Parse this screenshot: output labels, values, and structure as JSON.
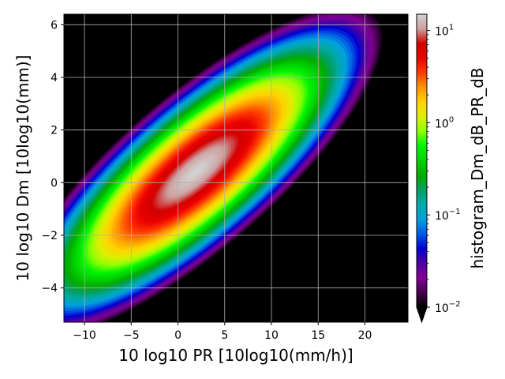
{
  "chart_data": {
    "type": "heatmap",
    "xlabel": "10 log10 PR [10log10(mm/h)]",
    "ylabel": "10 log10 Dm [10log10(mm)]",
    "colorbar_label": "histogram_Dm_dB_PR_dB",
    "xlim": [
      -12.2,
      24.6
    ],
    "ylim": [
      -5.3,
      6.4
    ],
    "x_ticks": [
      -10,
      -5,
      0,
      5,
      10,
      15,
      20
    ],
    "x_tick_labels": [
      "−10",
      "−5",
      "0",
      "5",
      "10",
      "15",
      "20"
    ],
    "y_ticks": [
      -4,
      -2,
      0,
      2,
      4,
      6
    ],
    "y_tick_labels": [
      "−4",
      "−2",
      "0",
      "2",
      "4",
      "6"
    ],
    "colorbar": {
      "scale": "log",
      "range": [
        0.01,
        15
      ],
      "extend": "min",
      "ticks": [
        {
          "value": 10,
          "base": "10",
          "exp": "1"
        },
        {
          "value": 1,
          "base": "10",
          "exp": "0"
        },
        {
          "value": 0.1,
          "base": "10",
          "exp": "−1"
        },
        {
          "value": 0.01,
          "base": "10",
          "exp": "−2"
        }
      ]
    },
    "distribution": {
      "shape": "tilted elliptical 2D histogram",
      "peak_x": 1.9,
      "peak_y": 0.4,
      "peak_value": 15,
      "slope_dDm_dPR": 0.306,
      "edge_value": 0.01,
      "major_extent_PR": 19.5,
      "minor_extent_Dm": 1.55
    },
    "background": "#000000",
    "grid": true
  }
}
